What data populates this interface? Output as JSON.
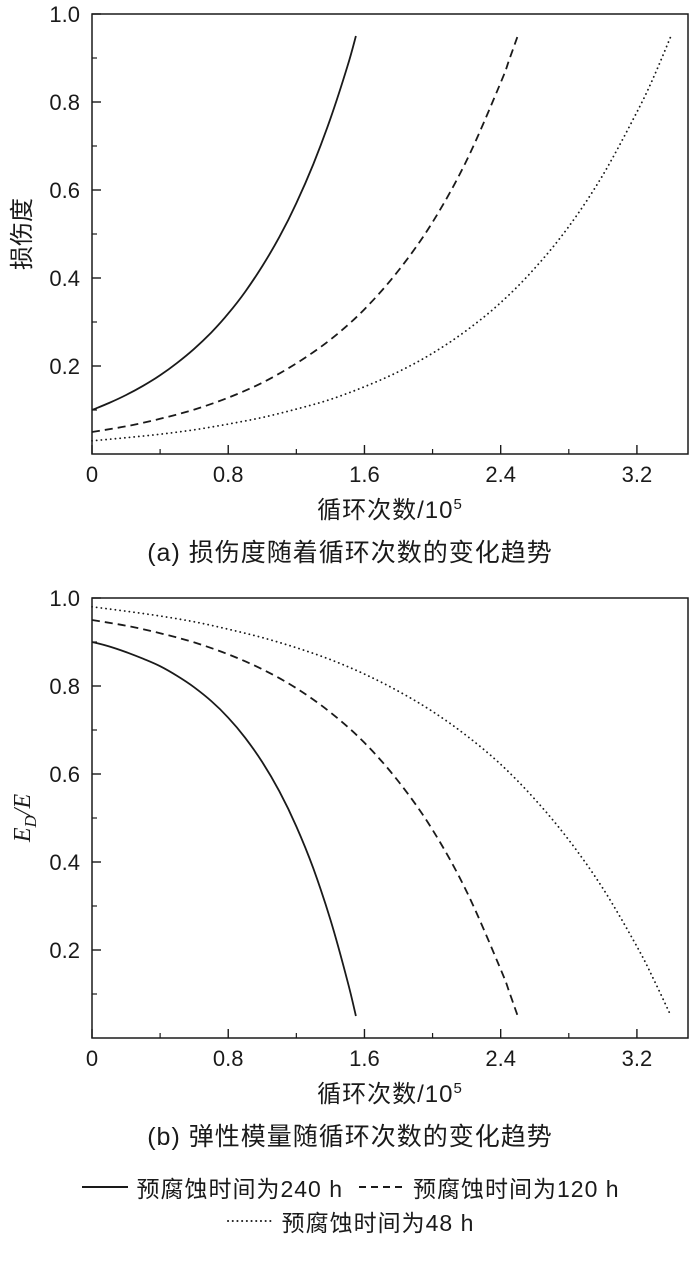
{
  "figure": {
    "background": "#ffffff",
    "line_color": "#1a1a1a"
  },
  "chart_data": [
    {
      "type": "line",
      "caption": "(a) 损伤度随着循环次数的变化趋势",
      "xlabel": "循环次数/10⁵",
      "xlabel_parts": [
        {
          "text": "循环次数/10"
        },
        {
          "text": "5",
          "sup": true
        }
      ],
      "ylabel": "损伤度",
      "ylabel_parts": [
        {
          "text": "损伤度"
        }
      ],
      "xlim": [
        0,
        3.5
      ],
      "ylim": [
        0,
        1.0
      ],
      "xticks": [
        0,
        0.8,
        1.6,
        2.4,
        3.2
      ],
      "xtick_labels": [
        "0",
        "0.8",
        "1.6",
        "2.4",
        "3.2"
      ],
      "x_minor_step": 0.4,
      "yticks": [
        0.2,
        0.4,
        0.6,
        0.8,
        1.0
      ],
      "ytick_labels": [
        "0.2",
        "0.4",
        "0.6",
        "0.8",
        "1.0"
      ],
      "y_minor_step": 0.1,
      "grid": false,
      "series": [
        {
          "name": "预腐蚀时间为240 h",
          "style": "solid",
          "points": [
            [
              0,
              0.1
            ],
            [
              0.1,
              0.116
            ],
            [
              0.2,
              0.134
            ],
            [
              0.3,
              0.155
            ],
            [
              0.4,
              0.179
            ],
            [
              0.5,
              0.207
            ],
            [
              0.6,
              0.239
            ],
            [
              0.7,
              0.276
            ],
            [
              0.8,
              0.319
            ],
            [
              0.9,
              0.369
            ],
            [
              1.0,
              0.427
            ],
            [
              1.1,
              0.493
            ],
            [
              1.2,
              0.57
            ],
            [
              1.3,
              0.659
            ],
            [
              1.4,
              0.762
            ],
            [
              1.5,
              0.881
            ],
            [
              1.55,
              0.95
            ]
          ]
        },
        {
          "name": "预腐蚀时间为120 h",
          "style": "dashed",
          "points": [
            [
              0,
              0.05
            ],
            [
              0.2,
              0.063
            ],
            [
              0.4,
              0.08
            ],
            [
              0.6,
              0.101
            ],
            [
              0.8,
              0.128
            ],
            [
              1.0,
              0.162
            ],
            [
              1.2,
              0.206
            ],
            [
              1.4,
              0.26
            ],
            [
              1.6,
              0.329
            ],
            [
              1.8,
              0.417
            ],
            [
              2.0,
              0.527
            ],
            [
              2.2,
              0.667
            ],
            [
              2.4,
              0.844
            ],
            [
              2.45,
              0.896
            ],
            [
              2.5,
              0.95
            ]
          ]
        },
        {
          "name": "预腐蚀时间为48 h",
          "style": "dotted",
          "points": [
            [
              0,
              0.03
            ],
            [
              0.2,
              0.037
            ],
            [
              0.4,
              0.045
            ],
            [
              0.6,
              0.055
            ],
            [
              0.8,
              0.068
            ],
            [
              1.0,
              0.083
            ],
            [
              1.2,
              0.102
            ],
            [
              1.4,
              0.124
            ],
            [
              1.6,
              0.153
            ],
            [
              1.8,
              0.187
            ],
            [
              2.0,
              0.229
            ],
            [
              2.2,
              0.281
            ],
            [
              2.4,
              0.344
            ],
            [
              2.6,
              0.422
            ],
            [
              2.8,
              0.517
            ],
            [
              3.0,
              0.634
            ],
            [
              3.2,
              0.777
            ],
            [
              3.3,
              0.858
            ],
            [
              3.4,
              0.95
            ]
          ]
        }
      ]
    },
    {
      "type": "line",
      "caption": "(b) 弹性模量随循环次数的变化趋势",
      "xlabel": "循环次数/10⁵",
      "xlabel_parts": [
        {
          "text": "循环次数/10"
        },
        {
          "text": "5",
          "sup": true
        }
      ],
      "ylabel": "ED/E",
      "ylabel_parts": [
        {
          "text": "E",
          "italic": true
        },
        {
          "text": "D",
          "sub": true,
          "italic": true
        },
        {
          "text": "/",
          "italic": true
        },
        {
          "text": "E",
          "italic": true
        }
      ],
      "xlim": [
        0,
        3.5
      ],
      "ylim": [
        0,
        1.0
      ],
      "xticks": [
        0,
        0.8,
        1.6,
        2.4,
        3.2
      ],
      "xtick_labels": [
        "0",
        "0.8",
        "1.6",
        "2.4",
        "3.2"
      ],
      "x_minor_step": 0.4,
      "yticks": [
        0.2,
        0.4,
        0.6,
        0.8,
        1.0
      ],
      "ytick_labels": [
        "0.2",
        "0.4",
        "0.6",
        "0.8",
        "1.0"
      ],
      "y_minor_step": 0.1,
      "grid": false,
      "series": [
        {
          "name": "预腐蚀时间为240 h",
          "style": "solid",
          "points": [
            [
              0,
              0.9
            ],
            [
              0.1,
              0.89
            ],
            [
              0.2,
              0.877
            ],
            [
              0.3,
              0.862
            ],
            [
              0.4,
              0.845
            ],
            [
              0.5,
              0.823
            ],
            [
              0.6,
              0.797
            ],
            [
              0.7,
              0.766
            ],
            [
              0.8,
              0.728
            ],
            [
              0.9,
              0.682
            ],
            [
              1.0,
              0.627
            ],
            [
              1.1,
              0.561
            ],
            [
              1.2,
              0.481
            ],
            [
              1.3,
              0.385
            ],
            [
              1.4,
              0.269
            ],
            [
              1.5,
              0.13
            ],
            [
              1.55,
              0.05
            ]
          ]
        },
        {
          "name": "预腐蚀时间为120 h",
          "style": "dashed",
          "points": [
            [
              0,
              0.95
            ],
            [
              0.2,
              0.937
            ],
            [
              0.4,
              0.92
            ],
            [
              0.6,
              0.899
            ],
            [
              0.8,
              0.872
            ],
            [
              1.0,
              0.838
            ],
            [
              1.2,
              0.795
            ],
            [
              1.4,
              0.74
            ],
            [
              1.6,
              0.671
            ],
            [
              1.8,
              0.583
            ],
            [
              2.0,
              0.473
            ],
            [
              2.2,
              0.333
            ],
            [
              2.4,
              0.156
            ],
            [
              2.45,
              0.105
            ],
            [
              2.5,
              0.05
            ]
          ]
        },
        {
          "name": "预腐蚀时间为48 h",
          "style": "dotted",
          "points": [
            [
              0,
              0.98
            ],
            [
              0.2,
              0.97
            ],
            [
              0.4,
              0.959
            ],
            [
              0.6,
              0.946
            ],
            [
              0.8,
              0.929
            ],
            [
              1.0,
              0.91
            ],
            [
              1.2,
              0.887
            ],
            [
              1.4,
              0.86
            ],
            [
              1.6,
              0.827
            ],
            [
              1.8,
              0.788
            ],
            [
              2.0,
              0.742
            ],
            [
              2.2,
              0.687
            ],
            [
              2.4,
              0.622
            ],
            [
              2.6,
              0.543
            ],
            [
              2.8,
              0.45
            ],
            [
              3.0,
              0.34
            ],
            [
              3.2,
              0.208
            ],
            [
              3.3,
              0.132
            ],
            [
              3.4,
              0.05
            ]
          ]
        }
      ]
    }
  ],
  "legend": {
    "rows": [
      [
        {
          "style": "solid",
          "label": "预腐蚀时间为240 h"
        },
        {
          "style": "dashed",
          "label": "预腐蚀时间为120 h"
        }
      ],
      [
        {
          "style": "dotted",
          "label": "预腐蚀时间为48 h"
        }
      ]
    ]
  }
}
